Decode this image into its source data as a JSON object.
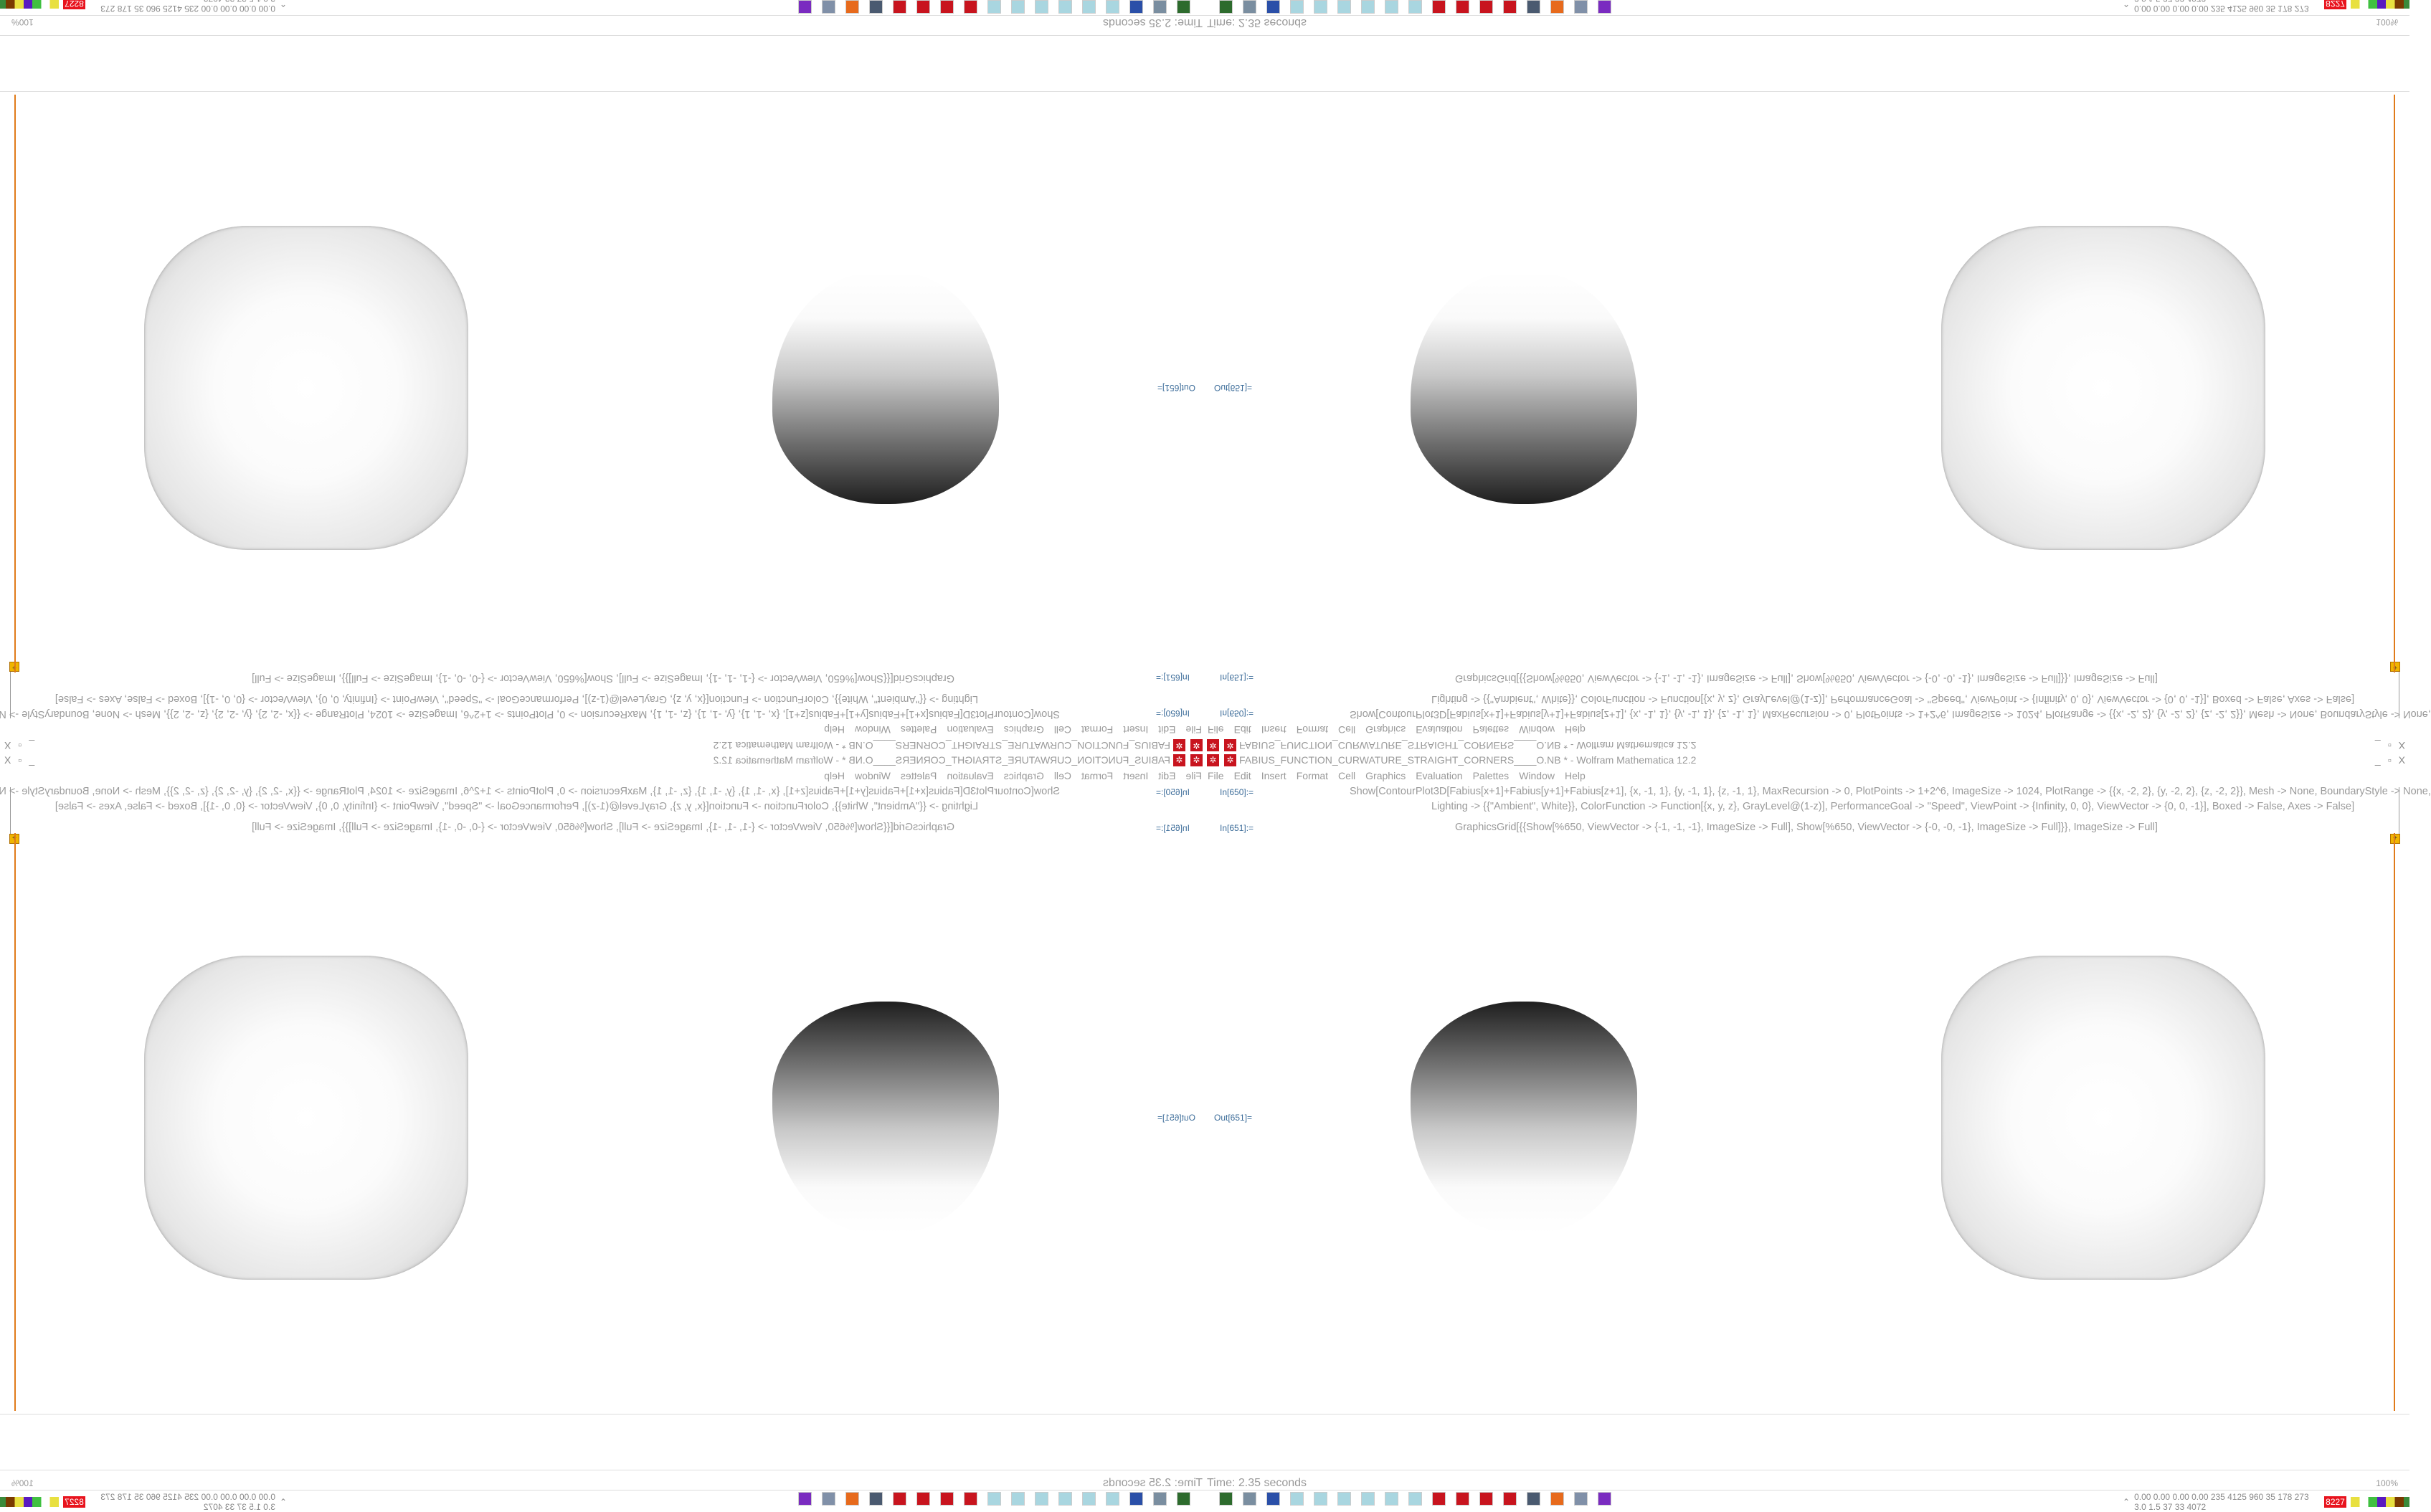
{
  "window": {
    "title": "FABIUS_FUNCTION_CURWATURE_STRAIGHT_CORNERS____O.NB * - Wolfram Mathematica 12.2",
    "controls": [
      "_",
      "▫",
      "X"
    ]
  },
  "menu": [
    "File",
    "Edit",
    "Insert",
    "Format",
    "Cell",
    "Graphics",
    "Evaluation",
    "Palettes",
    "Window",
    "Help"
  ],
  "cells": [
    {
      "label": "In[650]:=",
      "lines": [
        "Show[ContourPlot3D[Fabius[x+1]+Fabius[y+1]+Fabius[z+1], {x, -1, 1}, {y, -1, 1}, {z, -1, 1}, MaxRecursion -> 0, PlotPoints -> 1+2^6, ImageSize -> 1024, PlotRange -> {{x, -2, 2}, {y, -2, 2}, {z, -2, 2}}, Mesh -> None, BoundaryStyle -> None,",
        "Lighting -> {{\"Ambient\", White}}, ColorFunction -> Function[{x, y, z}, GrayLevel@(1-z)], PerformanceGoal -> \"Speed\", ViewPoint -> {Infinity, 0, 0}, ViewVector -> {0, 0, -1}], Boxed -> False, Axes -> False]"
      ]
    },
    {
      "label": "In[651]:=",
      "lines": [
        "GraphicsGrid[{{Show[%650, ViewVector -> {-1, -1, -1}, ImageSize -> Full], Show[%650, ViewVector -> {-0, -0, -1}, ImageSize -> Full]}}, ImageSize -> Full]"
      ]
    },
    {
      "label": "Out[651]="
    }
  ],
  "status": {
    "text": "Time: 2.35 seconds",
    "zoom": "100%"
  },
  "taskbar": {
    "icons": [
      "terminal-icon",
      "computer-icon",
      "floppy-icon",
      "notepad-icon",
      "notepad-icon",
      "notepad-icon",
      "notepad-icon",
      "notepad-icon",
      "notepad-icon",
      "mathematica-icon",
      "mathematica-icon",
      "mathematica-icon",
      "mathematica-icon",
      "monitor-icon",
      "firefox-icon",
      "server-icon",
      "purple-app-icon"
    ],
    "colors": [
      "#2d6b2d",
      "#7a8ea0",
      "#2a4fa8",
      "#a9d6e0",
      "#a9d6e0",
      "#a9d6e0",
      "#a9d6e0",
      "#a9d6e0",
      "#a9d6e0",
      "#c8141e",
      "#c8141e",
      "#c8141e",
      "#c8141e",
      "#4a5a70",
      "#e76a1c",
      "#8090a8",
      "#7a2bc0"
    ],
    "tray_values": "0.00 0.00 0.00 0.00 235 4125 960  35  178  273  3.0  1.5  37  33  4072",
    "tray_badge": "8227"
  },
  "colors": {
    "accent": "#e07b1a",
    "mathematica_red": "#c8141e",
    "in_label": "#3d6d9a"
  }
}
